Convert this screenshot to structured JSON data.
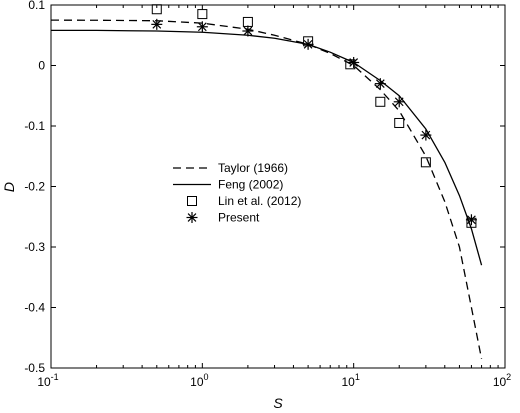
{
  "chart_data": {
    "type": "line",
    "xlabel": "S",
    "ylabel": "D",
    "xscale": "log",
    "xlim": [
      0.1,
      100
    ],
    "ylim": [
      -0.5,
      0.1
    ],
    "xticks": [
      {
        "value": 0.1,
        "base": "10",
        "exp": "-1"
      },
      {
        "value": 1,
        "base": "10",
        "exp": "0"
      },
      {
        "value": 10,
        "base": "10",
        "exp": "1"
      },
      {
        "value": 100,
        "base": "10",
        "exp": "2"
      }
    ],
    "yticks": [
      {
        "value": 0.1,
        "label": "0.1"
      },
      {
        "value": 0,
        "label": "0"
      },
      {
        "value": -0.1,
        "label": "-0.1"
      },
      {
        "value": -0.2,
        "label": "-0.2"
      },
      {
        "value": -0.3,
        "label": "-0.3"
      },
      {
        "value": -0.4,
        "label": "-0.4"
      },
      {
        "value": -0.5,
        "label": "-0.5"
      }
    ],
    "grid": false,
    "legend_position": "center-left",
    "series": [
      {
        "name": "Taylor (1966)",
        "style": "dashed-line",
        "x": [
          0.1,
          0.2,
          0.5,
          1,
          2,
          3,
          5,
          7,
          10,
          15,
          20,
          30,
          40,
          50,
          60,
          70
        ],
        "y": [
          0.075,
          0.0748,
          0.074,
          0.07,
          0.06,
          0.05,
          0.035,
          0.02,
          0.0,
          -0.04,
          -0.075,
          -0.15,
          -0.225,
          -0.3,
          -0.4,
          -0.485
        ]
      },
      {
        "name": "Feng (2002)",
        "style": "solid-line",
        "x": [
          0.1,
          0.2,
          0.5,
          1,
          2,
          3,
          5,
          7,
          10,
          15,
          20,
          30,
          40,
          50,
          60,
          70
        ],
        "y": [
          0.058,
          0.058,
          0.057,
          0.055,
          0.05,
          0.045,
          0.035,
          0.022,
          0.005,
          -0.025,
          -0.05,
          -0.105,
          -0.16,
          -0.215,
          -0.27,
          -0.33
        ]
      },
      {
        "name": "Lin et al. (2012)",
        "style": "square-marker",
        "x": [
          0.5,
          1,
          2,
          5,
          9.5,
          15,
          20,
          30,
          60
        ],
        "y": [
          0.093,
          0.085,
          0.072,
          0.04,
          0.002,
          -0.06,
          -0.095,
          -0.16,
          -0.26
        ]
      },
      {
        "name": "Present",
        "style": "asterisk-marker",
        "x": [
          0.5,
          1,
          2,
          5,
          10,
          15,
          20,
          30,
          60
        ],
        "y": [
          0.068,
          0.064,
          0.057,
          0.035,
          0.005,
          -0.03,
          -0.06,
          -0.115,
          -0.255
        ]
      }
    ]
  }
}
